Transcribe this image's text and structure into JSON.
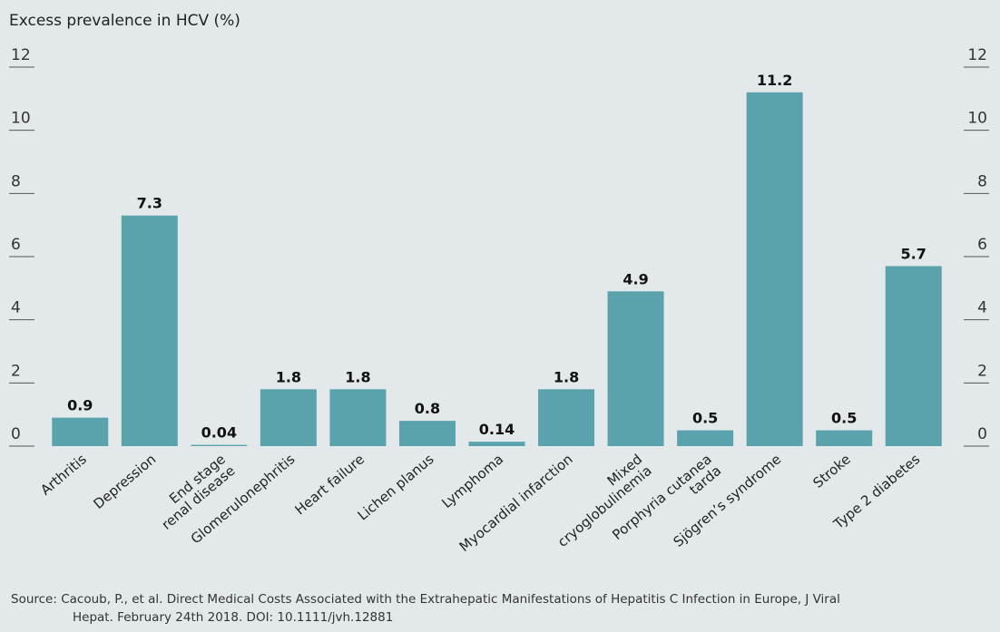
{
  "chart_data": {
    "type": "bar",
    "title": "Excess prevalence in HCV (%)",
    "categories": [
      "Arthritis",
      "Depression",
      "End stage\nrenal disease",
      "Glomerulonephritis",
      "Heart failure",
      "Lichen planus",
      "Lymphoma",
      "Myocardial infarction",
      "Mixed\ncryoglobulinemia",
      "Porphyria cutanea\ntarda",
      "Sjögren’s syndrome",
      "Stroke",
      "Type 2 diabetes"
    ],
    "values": [
      0.9,
      7.3,
      0.04,
      1.8,
      1.8,
      0.8,
      0.14,
      1.8,
      4.9,
      0.5,
      11.2,
      0.5,
      5.7
    ],
    "color": "#5aa3ad",
    "ylim": [
      0,
      12
    ],
    "yticks": [
      0,
      2,
      4,
      6,
      8,
      10,
      12
    ],
    "y2lim": [
      0,
      12
    ],
    "y2ticks": [
      0,
      2,
      4,
      6,
      8,
      10,
      12
    ],
    "source": [
      "Source: Cacoub, P., et al. Direct Medical Costs Associated with the Extrahepatic Manifestations of Hepatitis C Infection in Europe,  J Viral",
      "Hepat. February 24th 2018. DOI: 10.1111/jvh.12881"
    ]
  }
}
